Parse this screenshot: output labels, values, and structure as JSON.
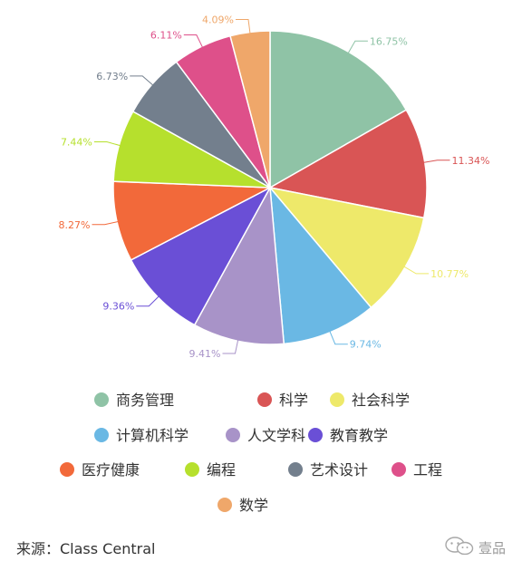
{
  "chart_data": {
    "type": "pie",
    "slices": [
      {
        "name": "商务管理",
        "value": 16.75,
        "label": "16.75%",
        "color": "#8fc3a6"
      },
      {
        "name": "科学",
        "value": 11.34,
        "label": "11.34%",
        "color": "#d95555"
      },
      {
        "name": "社会科学",
        "value": 10.77,
        "label": "10.77%",
        "color": "#eee96a"
      },
      {
        "name": "计算机科学",
        "value": 9.74,
        "label": "9.74%",
        "color": "#6ab8e4"
      },
      {
        "name": "人文学科",
        "value": 9.41,
        "label": "9.41%",
        "color": "#a893c8"
      },
      {
        "name": "教育教学",
        "value": 9.36,
        "label": "9.36%",
        "color": "#6a4fd6"
      },
      {
        "name": "医疗健康",
        "value": 8.27,
        "label": "8.27%",
        "color": "#f2693a"
      },
      {
        "name": "编程",
        "value": 7.44,
        "label": "7.44%",
        "color": "#b6e02d"
      },
      {
        "name": "艺术设计",
        "value": 6.73,
        "label": "6.73%",
        "color": "#737f8d"
      },
      {
        "name": "工程",
        "value": 6.11,
        "label": "6.11%",
        "color": "#de508a"
      },
      {
        "name": "数学",
        "value": 4.09,
        "label": "4.09%",
        "color": "#efa76a"
      }
    ],
    "legend_placement": "bottom"
  },
  "source_text": "来源：Class Central",
  "watermark_text": "壹品",
  "watermark_icon": "wechat-icon"
}
